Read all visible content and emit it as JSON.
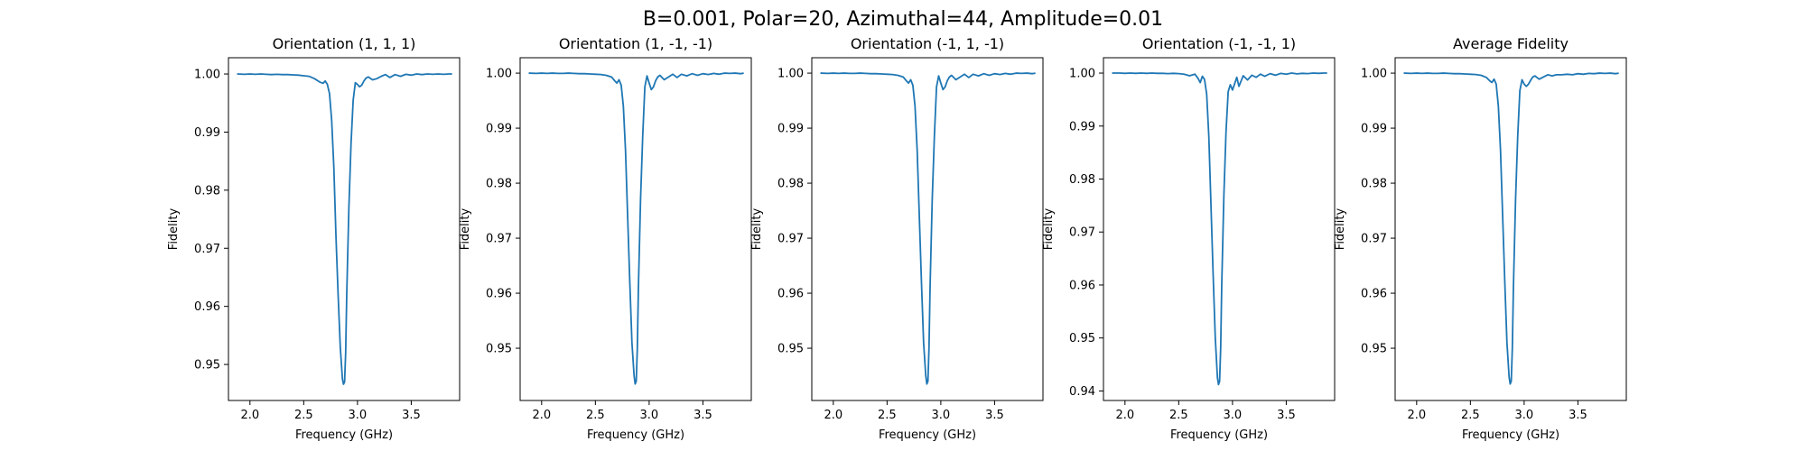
{
  "figure": {
    "suptitle": "B=0.001, Polar=20, Azimuthal=44, Amplitude=0.01"
  },
  "colors": {
    "line": "#1f77b4",
    "axes": "#000000",
    "background": "#ffffff"
  },
  "chart_data": [
    {
      "type": "line",
      "title": "Orientation (1, 1, 1)",
      "xlabel": "Frequency (GHz)",
      "ylabel": "Fidelity",
      "xlim": [
        1.8,
        3.95
      ],
      "ylim": [
        0.9438,
        1.0028
      ],
      "xticks": [
        2.0,
        2.5,
        3.0,
        3.5
      ],
      "yticks": [
        0.95,
        0.96,
        0.97,
        0.98,
        0.99,
        1.0
      ],
      "xtick_labels": [
        "2.0",
        "2.5",
        "3.0",
        "3.5"
      ],
      "ytick_labels": [
        "0.95",
        "0.96",
        "0.97",
        "0.98",
        "0.99",
        "1.00"
      ],
      "grid": false,
      "series": [
        {
          "x": [
            1.88,
            1.95,
            2.0,
            2.05,
            2.1,
            2.15,
            2.2,
            2.25,
            2.3,
            2.35,
            2.4,
            2.45,
            2.5,
            2.55,
            2.6,
            2.65,
            2.68,
            2.7,
            2.72,
            2.74,
            2.76,
            2.78,
            2.8,
            2.82,
            2.84,
            2.86,
            2.87,
            2.88,
            2.89,
            2.9,
            2.92,
            2.94,
            2.96,
            2.98,
            3.0,
            3.02,
            3.04,
            3.06,
            3.08,
            3.1,
            3.14,
            3.18,
            3.22,
            3.26,
            3.3,
            3.35,
            3.4,
            3.45,
            3.5,
            3.55,
            3.6,
            3.65,
            3.7,
            3.75,
            3.8,
            3.85,
            3.88
          ],
          "y": [
            1.0,
            0.99995,
            1.0,
            0.99995,
            1.0,
            0.99995,
            0.9999,
            0.99995,
            0.9999,
            0.9999,
            0.99985,
            0.9998,
            0.9997,
            0.9996,
            0.9992,
            0.9986,
            0.9984,
            0.9988,
            0.9982,
            0.9966,
            0.992,
            0.984,
            0.972,
            0.962,
            0.953,
            0.9475,
            0.9466,
            0.947,
            0.952,
            0.962,
            0.977,
            0.988,
            0.9955,
            0.9985,
            0.9982,
            0.9978,
            0.9981,
            0.9988,
            0.9993,
            0.9995,
            0.999,
            0.9992,
            0.9996,
            0.9999,
            0.9994,
            0.9999,
            0.9996,
            0.99995,
            0.9998,
            1.0,
            0.9999,
            1.0,
            0.99995,
            1.0,
            0.99995,
            1.0,
            1.0
          ]
        }
      ]
    },
    {
      "type": "line",
      "title": "Orientation (1, -1, -1)",
      "xlabel": "Frequency (GHz)",
      "ylabel": "Fidelity",
      "xlim": [
        1.8,
        3.95
      ],
      "ylim": [
        0.9405,
        1.0028
      ],
      "xticks": [
        2.0,
        2.5,
        3.0,
        3.5
      ],
      "yticks": [
        0.95,
        0.96,
        0.97,
        0.98,
        0.99,
        1.0
      ],
      "xtick_labels": [
        "2.0",
        "2.5",
        "3.0",
        "3.5"
      ],
      "ytick_labels": [
        "0.95",
        "0.96",
        "0.97",
        "0.98",
        "0.99",
        "1.00"
      ],
      "grid": false,
      "series": [
        {
          "x": [
            1.88,
            1.95,
            2.0,
            2.05,
            2.1,
            2.15,
            2.2,
            2.25,
            2.3,
            2.35,
            2.4,
            2.45,
            2.5,
            2.55,
            2.6,
            2.65,
            2.68,
            2.7,
            2.72,
            2.74,
            2.76,
            2.78,
            2.8,
            2.82,
            2.84,
            2.86,
            2.87,
            2.88,
            2.89,
            2.9,
            2.92,
            2.94,
            2.96,
            2.98,
            3.0,
            3.02,
            3.04,
            3.06,
            3.08,
            3.1,
            3.14,
            3.18,
            3.22,
            3.26,
            3.3,
            3.35,
            3.4,
            3.45,
            3.5,
            3.55,
            3.6,
            3.65,
            3.7,
            3.75,
            3.8,
            3.85,
            3.88
          ],
          "y": [
            1.0,
            0.99995,
            1.0,
            0.99995,
            1.0,
            0.99995,
            0.99995,
            1.0,
            0.99995,
            0.9999,
            0.9999,
            0.99985,
            0.9998,
            0.99975,
            0.9996,
            0.9993,
            0.9986,
            0.9982,
            0.9988,
            0.9978,
            0.994,
            0.986,
            0.974,
            0.962,
            0.951,
            0.945,
            0.9435,
            0.944,
            0.95,
            0.961,
            0.977,
            0.9885,
            0.9975,
            0.9995,
            0.9982,
            0.997,
            0.9975,
            0.9986,
            0.9993,
            0.9996,
            0.9988,
            0.9993,
            0.9998,
            0.9992,
            0.9998,
            0.9995,
            0.9999,
            0.9996,
            0.9999,
            0.99975,
            0.99995,
            0.9998,
            1.0,
            0.99995,
            1.0,
            0.9999,
            1.0
          ]
        }
      ]
    },
    {
      "type": "line",
      "title": "Orientation (-1, 1, -1)",
      "xlabel": "Frequency (GHz)",
      "ylabel": "Fidelity",
      "xlim": [
        1.8,
        3.95
      ],
      "ylim": [
        0.9405,
        1.0028
      ],
      "xticks": [
        2.0,
        2.5,
        3.0,
        3.5
      ],
      "yticks": [
        0.95,
        0.96,
        0.97,
        0.98,
        0.99,
        1.0
      ],
      "xtick_labels": [
        "2.0",
        "2.5",
        "3.0",
        "3.5"
      ],
      "ytick_labels": [
        "0.95",
        "0.96",
        "0.97",
        "0.98",
        "0.99",
        "1.00"
      ],
      "grid": false,
      "series": [
        {
          "x": [
            1.88,
            1.95,
            2.0,
            2.05,
            2.1,
            2.15,
            2.2,
            2.25,
            2.3,
            2.35,
            2.4,
            2.45,
            2.5,
            2.55,
            2.6,
            2.65,
            2.68,
            2.7,
            2.72,
            2.74,
            2.76,
            2.78,
            2.8,
            2.82,
            2.84,
            2.86,
            2.87,
            2.88,
            2.89,
            2.9,
            2.92,
            2.94,
            2.96,
            2.98,
            3.0,
            3.02,
            3.04,
            3.06,
            3.08,
            3.1,
            3.14,
            3.18,
            3.22,
            3.26,
            3.3,
            3.35,
            3.4,
            3.45,
            3.5,
            3.55,
            3.6,
            3.65,
            3.7,
            3.75,
            3.8,
            3.85,
            3.88
          ],
          "y": [
            1.0,
            0.99995,
            1.0,
            0.99995,
            1.0,
            0.99995,
            0.99995,
            1.0,
            0.99995,
            0.9999,
            0.9999,
            0.99985,
            0.9998,
            0.99975,
            0.9996,
            0.9993,
            0.9986,
            0.9982,
            0.9988,
            0.9978,
            0.994,
            0.986,
            0.974,
            0.962,
            0.951,
            0.945,
            0.9435,
            0.944,
            0.95,
            0.961,
            0.977,
            0.9885,
            0.9975,
            0.9995,
            0.9982,
            0.997,
            0.9975,
            0.9986,
            0.9993,
            0.9996,
            0.9988,
            0.9993,
            0.9998,
            0.9992,
            0.9998,
            0.9995,
            0.9999,
            0.9996,
            0.9999,
            0.99975,
            0.99995,
            0.9998,
            1.0,
            0.99995,
            1.0,
            0.9999,
            1.0
          ]
        }
      ]
    },
    {
      "type": "line",
      "title": "Orientation (-1, -1, 1)",
      "xlabel": "Frequency (GHz)",
      "ylabel": "Fidelity",
      "xlim": [
        1.8,
        3.95
      ],
      "ylim": [
        0.9382,
        1.0029
      ],
      "xticks": [
        2.0,
        2.5,
        3.0,
        3.5
      ],
      "yticks": [
        0.94,
        0.95,
        0.96,
        0.97,
        0.98,
        0.99,
        1.0
      ],
      "xtick_labels": [
        "2.0",
        "2.5",
        "3.0",
        "3.5"
      ],
      "ytick_labels": [
        "0.94",
        "0.95",
        "0.96",
        "0.97",
        "0.98",
        "0.99",
        "1.00"
      ],
      "grid": false,
      "series": [
        {
          "x": [
            1.88,
            1.95,
            2.0,
            2.05,
            2.1,
            2.15,
            2.2,
            2.25,
            2.3,
            2.35,
            2.4,
            2.45,
            2.5,
            2.55,
            2.6,
            2.65,
            2.68,
            2.7,
            2.72,
            2.74,
            2.76,
            2.78,
            2.8,
            2.82,
            2.84,
            2.86,
            2.87,
            2.88,
            2.89,
            2.9,
            2.92,
            2.94,
            2.96,
            2.98,
            3.0,
            3.02,
            3.04,
            3.06,
            3.08,
            3.1,
            3.14,
            3.18,
            3.22,
            3.26,
            3.3,
            3.35,
            3.4,
            3.45,
            3.5,
            3.55,
            3.6,
            3.65,
            3.7,
            3.75,
            3.8,
            3.85,
            3.88
          ],
          "y": [
            1.0,
            1.0,
            0.99995,
            1.0,
            0.99995,
            1.0,
            0.99995,
            1.0,
            0.99995,
            0.99995,
            0.9999,
            0.99995,
            0.9999,
            0.9998,
            0.9995,
            0.9998,
            0.999,
            0.9982,
            0.9994,
            0.9988,
            0.996,
            0.988,
            0.975,
            0.962,
            0.95,
            0.9425,
            0.9412,
            0.9418,
            0.948,
            0.96,
            0.977,
            0.989,
            0.9965,
            0.9978,
            0.9968,
            0.998,
            0.9992,
            0.9975,
            0.9985,
            0.9995,
            0.9987,
            0.9996,
            0.9992,
            0.9998,
            0.9994,
            0.9999,
            0.9996,
            0.99995,
            0.9998,
            1.0,
            0.99985,
            0.99995,
            0.9999,
            1.0,
            0.99995,
            1.0,
            1.0
          ]
        }
      ]
    },
    {
      "type": "line",
      "title": "Average Fidelity",
      "xlabel": "Frequency (GHz)",
      "ylabel": "Fidelity",
      "xlim": [
        1.8,
        3.95
      ],
      "ylim": [
        0.9405,
        1.0028
      ],
      "xticks": [
        2.0,
        2.5,
        3.0,
        3.5
      ],
      "yticks": [
        0.95,
        0.96,
        0.97,
        0.98,
        0.99,
        1.0
      ],
      "xtick_labels": [
        "2.0",
        "2.5",
        "3.0",
        "3.5"
      ],
      "ytick_labels": [
        "0.95",
        "0.96",
        "0.97",
        "0.98",
        "0.99",
        "1.00"
      ],
      "grid": false,
      "series": [
        {
          "x": [
            1.88,
            1.95,
            2.0,
            2.05,
            2.1,
            2.15,
            2.2,
            2.25,
            2.3,
            2.35,
            2.4,
            2.45,
            2.5,
            2.55,
            2.6,
            2.65,
            2.68,
            2.7,
            2.72,
            2.74,
            2.76,
            2.78,
            2.8,
            2.82,
            2.84,
            2.86,
            2.87,
            2.88,
            2.89,
            2.9,
            2.92,
            2.94,
            2.96,
            2.98,
            3.0,
            3.02,
            3.04,
            3.06,
            3.08,
            3.1,
            3.14,
            3.18,
            3.22,
            3.26,
            3.3,
            3.35,
            3.4,
            3.45,
            3.5,
            3.55,
            3.6,
            3.65,
            3.7,
            3.75,
            3.8,
            3.85,
            3.88
          ],
          "y": [
            1.0,
            0.99995,
            1.0,
            0.99995,
            1.0,
            0.99995,
            0.99995,
            1.0,
            0.99995,
            0.9999,
            0.9999,
            0.99985,
            0.9998,
            0.99975,
            0.9996,
            0.9992,
            0.9986,
            0.9983,
            0.9989,
            0.998,
            0.994,
            0.986,
            0.974,
            0.962,
            0.951,
            0.9448,
            0.9435,
            0.944,
            0.95,
            0.961,
            0.977,
            0.9885,
            0.9968,
            0.9988,
            0.998,
            0.9976,
            0.998,
            0.9987,
            0.9993,
            0.9995,
            0.9989,
            0.9993,
            0.9997,
            0.9995,
            0.9997,
            0.9997,
            0.9998,
            0.9997,
            0.9999,
            0.9998,
            0.99995,
            0.9999,
            1.0,
            0.99995,
            1.0,
            0.9999,
            1.0
          ]
        }
      ]
    }
  ]
}
